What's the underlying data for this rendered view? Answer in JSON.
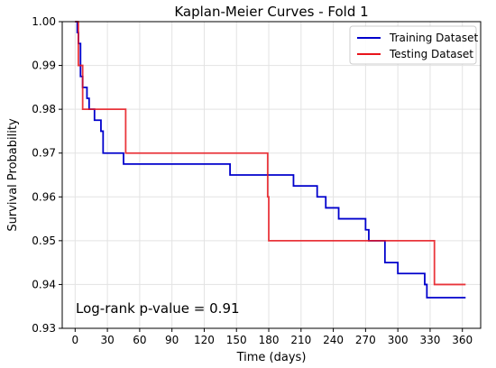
{
  "chart_data": {
    "type": "line",
    "title": "Kaplan-Meier Curves - Fold 1",
    "xlabel": "Time (days)",
    "ylabel": "Survival Probability",
    "xlim": [
      -12,
      377
    ],
    "ylim": [
      0.93,
      1.0
    ],
    "xticks": [
      0,
      30,
      60,
      90,
      120,
      150,
      180,
      210,
      240,
      270,
      300,
      330,
      360
    ],
    "yticks": [
      0.93,
      0.94,
      0.95,
      0.96,
      0.97,
      0.98,
      0.99,
      1.0
    ],
    "ytick_labels": [
      "0.93",
      "0.94",
      "0.95",
      "0.96",
      "0.97",
      "0.98",
      "0.99",
      "1.00"
    ],
    "grid": true,
    "legend_position": "top-right",
    "annotation": "Log-rank p-value = 0.91",
    "series": [
      {
        "name": "Training Dataset",
        "color": "#0000cc",
        "steps": [
          [
            0,
            1.0
          ],
          [
            2,
            0.9975
          ],
          [
            3,
            0.995
          ],
          [
            5,
            0.9875
          ],
          [
            7,
            0.985
          ],
          [
            11,
            0.9825
          ],
          [
            13,
            0.98
          ],
          [
            18,
            0.9775
          ],
          [
            24,
            0.975
          ],
          [
            26,
            0.97
          ],
          [
            45,
            0.9675
          ],
          [
            144,
            0.965
          ],
          [
            203,
            0.9625
          ],
          [
            225,
            0.96
          ],
          [
            233,
            0.9575
          ],
          [
            245,
            0.955
          ],
          [
            270,
            0.9525
          ],
          [
            273,
            0.95
          ],
          [
            288,
            0.945
          ],
          [
            300,
            0.9425
          ],
          [
            325,
            0.94
          ],
          [
            327,
            0.937
          ],
          [
            363,
            0.937
          ]
        ]
      },
      {
        "name": "Testing Dataset",
        "color": "#e8141b",
        "steps": [
          [
            0,
            1.0
          ],
          [
            3,
            0.99
          ],
          [
            7,
            0.98
          ],
          [
            47,
            0.97
          ],
          [
            179,
            0.96
          ],
          [
            180,
            0.95
          ],
          [
            334,
            0.94
          ],
          [
            363,
            0.94
          ]
        ]
      }
    ]
  }
}
